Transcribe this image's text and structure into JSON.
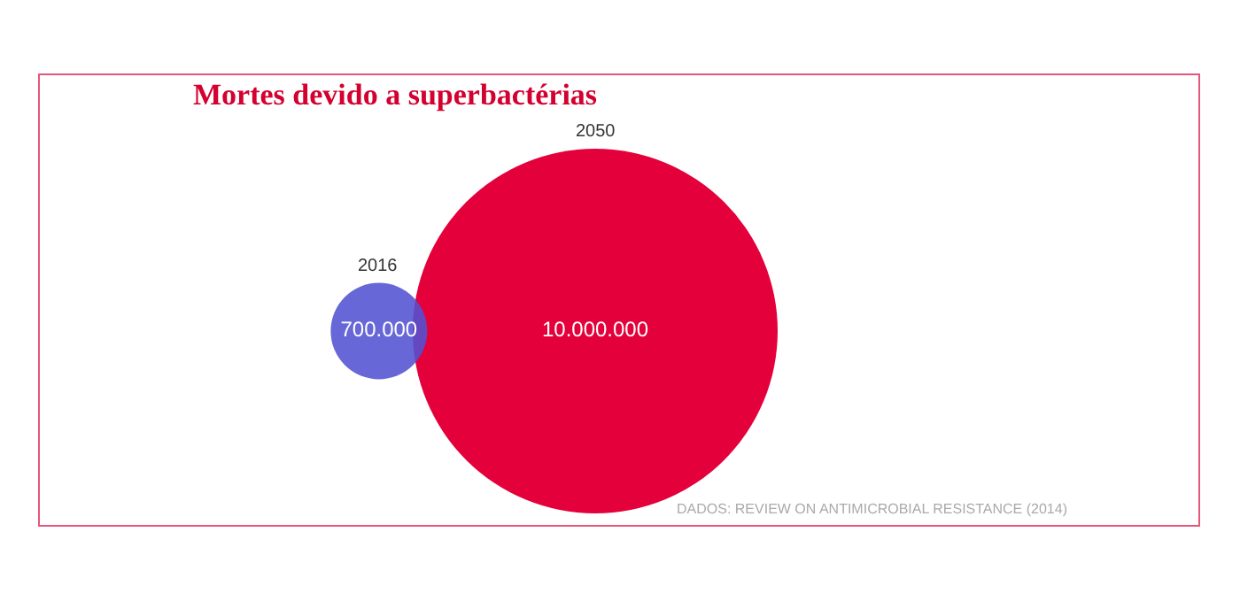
{
  "chart_data": {
    "type": "other",
    "title": "Mortes devido a superbactérias",
    "categories": [
      "2016",
      "2050"
    ],
    "values": [
      700000,
      10000000
    ],
    "value_labels": [
      "700.000",
      "10.000.000"
    ],
    "colors": [
      "#5252d2",
      "#e4003a"
    ],
    "annotations": [
      "DADOS: REVIEW ON ANTIMICROBIAL RESISTANCE (2014)"
    ]
  }
}
